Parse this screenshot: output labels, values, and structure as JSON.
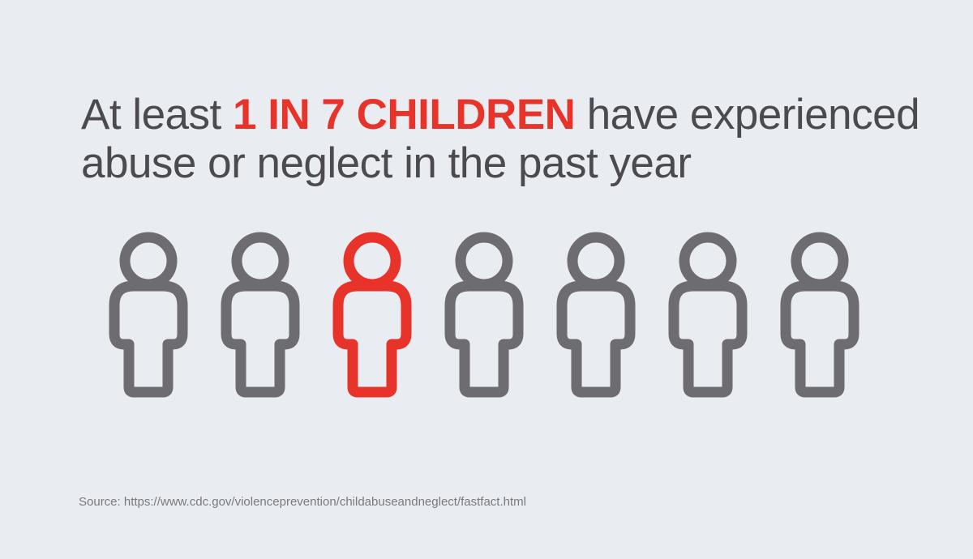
{
  "headline": {
    "lead": "At least",
    "highlight": "1 IN 7 CHILDREN",
    "line1_end": "have experienced",
    "line2": "abuse or neglect in the past year"
  },
  "source": "Source: https://www.cdc.gov/violenceprevention/childabuseandneglect/fastfact.html"
}
